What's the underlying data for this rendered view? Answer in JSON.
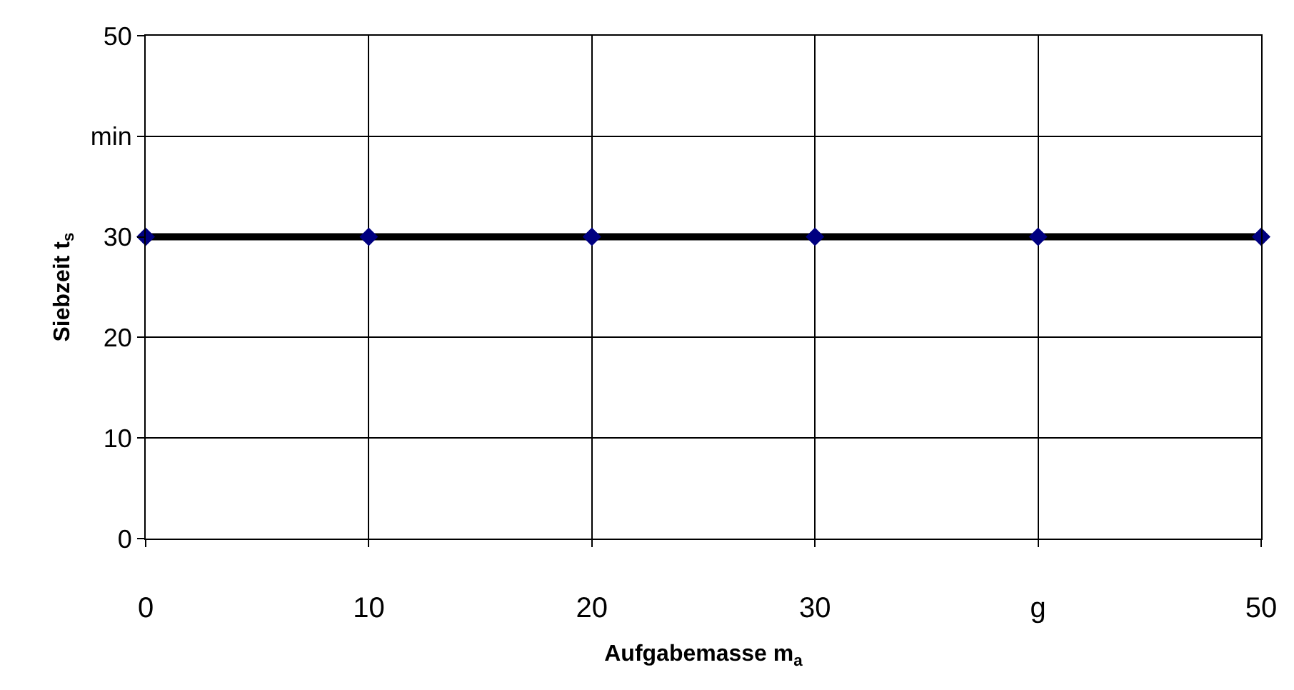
{
  "chart_data": {
    "type": "line",
    "xlabel": "Aufgabemasse m$_{a}$",
    "ylabel": "Siebzeit t$_{s}$",
    "x": [
      0,
      10,
      20,
      30,
      40,
      50
    ],
    "series": [
      {
        "color": "#000000",
        "colors": [
          "#000080",
          "#000080",
          "#000080",
          "#000080",
          "#000080",
          "#000080"
        ],
        "values": [
          30,
          30,
          30,
          30,
          30,
          30
        ]
      }
    ],
    "xlim": [
      0,
      50
    ],
    "ylim": [
      0,
      50
    ],
    "xticks": [
      0,
      10,
      20,
      30,
      {
        "value": 40,
        "label": "g"
      },
      50
    ],
    "yticks": [
      0,
      10,
      20,
      30,
      {
        "value": 40,
        "label": "min"
      },
      50
    ],
    "grid": true,
    "marker": "diamond",
    "line_style": "solid"
  }
}
